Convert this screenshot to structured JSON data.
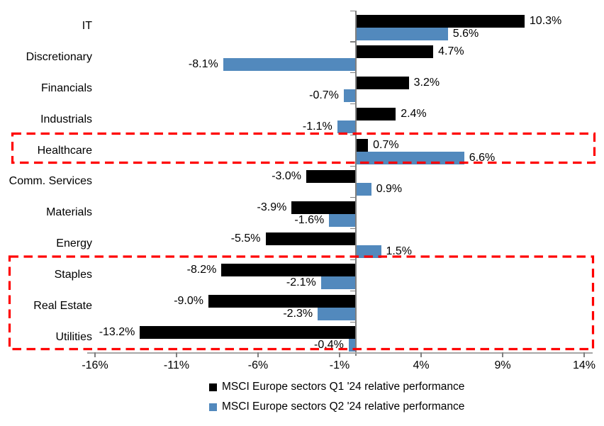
{
  "chart_data": {
    "type": "bar",
    "orientation": "horizontal",
    "categories": [
      "IT",
      "Discretionary",
      "Financials",
      "Industrials",
      "Healthcare",
      "Comm. Services",
      "Materials",
      "Energy",
      "Staples",
      "Real Estate",
      "Utilities"
    ],
    "series": [
      {
        "name": "MSCI Europe sectors Q1 '24 relative performance",
        "color": "#000000",
        "values": [
          10.3,
          4.7,
          3.2,
          2.4,
          0.7,
          -3.0,
          -3.9,
          -5.5,
          -8.2,
          -9.0,
          -13.2
        ]
      },
      {
        "name": "MSCI Europe sectors Q2 '24 relative performance",
        "color": "#5289BD",
        "values": [
          5.6,
          -8.1,
          -0.7,
          -1.1,
          6.6,
          0.9,
          -1.6,
          1.5,
          -2.1,
          -2.3,
          -0.4
        ]
      }
    ],
    "x_axis": {
      "tick_labels": [
        "-16%",
        "-11%",
        "-6%",
        "-1%",
        "4%",
        "9%",
        "14%"
      ],
      "tick_values": [
        -16,
        -11,
        -6,
        -1,
        4,
        9,
        14
      ],
      "min": -16.5,
      "max": 14.5
    },
    "value_label_format": "one-decimal-percent",
    "grid": false,
    "legend_position": "bottom",
    "highlight_color": "#FF0000",
    "highlights": [
      {
        "categories": [
          "Healthcare"
        ],
        "style": "dashed-box"
      },
      {
        "categories": [
          "Staples",
          "Real Estate",
          "Utilities"
        ],
        "style": "dashed-box"
      }
    ]
  }
}
